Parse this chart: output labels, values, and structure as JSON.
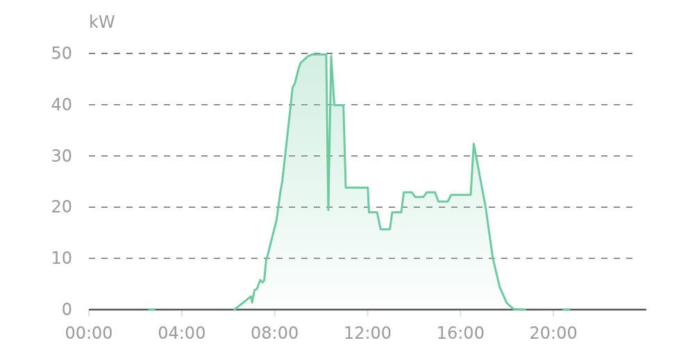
{
  "chart_data": {
    "type": "area",
    "ylabel": "kW",
    "grid": "y",
    "line_style": "solid",
    "marker": "none",
    "xlim": [
      0,
      24
    ],
    "ylim": [
      0,
      50
    ],
    "yticks": [
      0,
      10,
      20,
      30,
      40,
      50
    ],
    "xticks": [
      {
        "value": 0,
        "label": "00:00"
      },
      {
        "value": 4,
        "label": "04:00"
      },
      {
        "value": 8,
        "label": "08:00"
      },
      {
        "value": 12,
        "label": "12:00"
      },
      {
        "value": 16,
        "label": "16:00"
      },
      {
        "value": 20,
        "label": "20:00"
      }
    ],
    "series": [
      {
        "color": "#6cc9a0",
        "x": [
          6.27,
          6.98,
          7.03,
          7.13,
          7.23,
          7.38,
          7.48,
          7.55,
          7.63,
          7.73,
          7.88,
          8.08,
          8.15,
          8.23,
          8.33,
          8.52,
          8.63,
          8.77,
          8.87,
          9.02,
          9.12,
          9.42,
          9.62,
          10.22,
          10.31,
          10.43,
          10.57,
          10.96,
          11.06,
          12.01,
          12.06,
          12.41,
          12.56,
          12.96,
          13.06,
          13.45,
          13.56,
          13.9,
          14.05,
          14.4,
          14.55,
          14.9,
          15.05,
          15.45,
          15.6,
          16.44,
          16.57,
          17.09,
          17.39,
          17.69,
          17.99,
          18.29,
          18.78
        ],
        "values": [
          0,
          2.6,
          1.4,
          3.8,
          4,
          5.8,
          5.3,
          5.7,
          9.6,
          11.2,
          13.9,
          17.5,
          19.8,
          22.5,
          25.2,
          32.9,
          37.4,
          43.3,
          44.2,
          46.9,
          48.2,
          49.4,
          49.8,
          49.8,
          19.4,
          49.5,
          39.9,
          39.9,
          23.8,
          23.8,
          19,
          19,
          15.7,
          15.7,
          19,
          19,
          22.9,
          22.9,
          22,
          22,
          22.9,
          22.9,
          21.1,
          21.1,
          22.4,
          22.4,
          32.4,
          19.8,
          10.1,
          4.4,
          1.3,
          0.1,
          0
        ]
      },
      {
        "type": "line",
        "color": "#6cc9a0",
        "x": [
          2.6,
          2.82,
          2.9,
          20.43,
          20.68
        ],
        "values": [
          0,
          0,
          null,
          0,
          0
        ]
      }
    ]
  }
}
